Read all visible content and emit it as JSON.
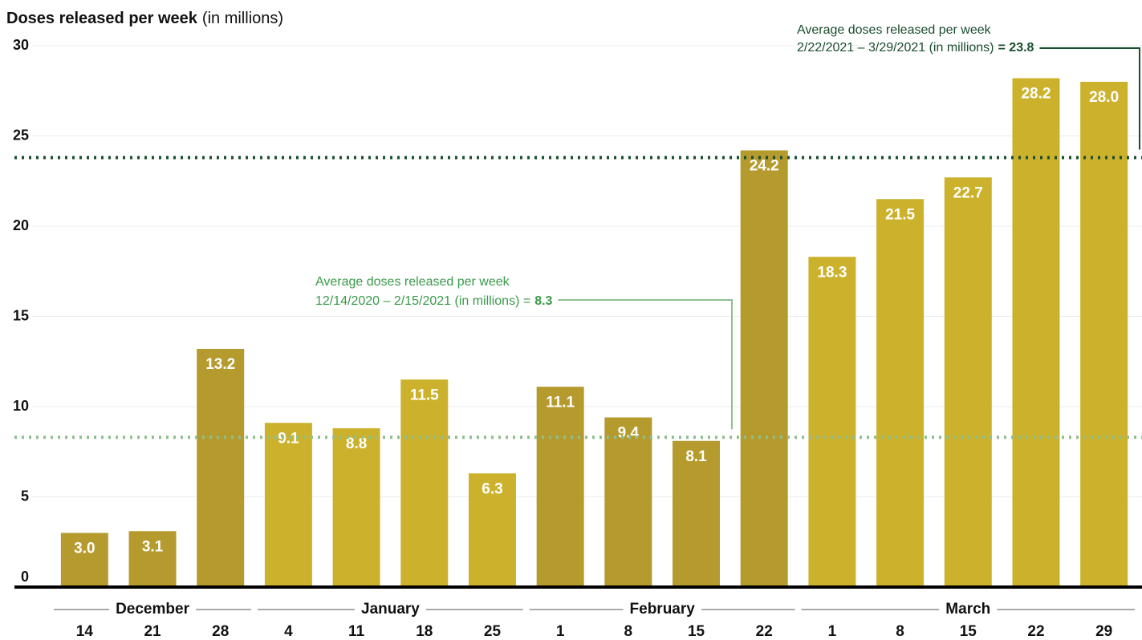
{
  "chart_data": {
    "type": "bar",
    "title": "Doses released per week",
    "subtitle": "(in millions)",
    "categories": [
      "14",
      "21",
      "28",
      "4",
      "11",
      "18",
      "25",
      "1",
      "8",
      "15",
      "22",
      "1",
      "8",
      "15",
      "22",
      "29"
    ],
    "months": [
      "December",
      "January",
      "February",
      "March"
    ],
    "values": [
      3.0,
      3.1,
      13.2,
      9.1,
      8.8,
      11.5,
      6.3,
      11.1,
      9.4,
      8.1,
      24.2,
      18.3,
      21.5,
      22.7,
      28.2,
      28.0
    ],
    "value_labels": [
      "3.0",
      "3.1",
      "13.2",
      "9.1",
      "8.8",
      "11.5",
      "6.3",
      "11.1",
      "9.4",
      "8.1",
      "24.2",
      "18.3",
      "21.5",
      "22.7",
      "28.2",
      "28.0"
    ],
    "colors": [
      "#b59a2e",
      "#b59a2e",
      "#b59a2e",
      "#ccb22c",
      "#ccb22c",
      "#ccb22c",
      "#ccb22c",
      "#b59a2e",
      "#b59a2e",
      "#b59a2e",
      "#b59a2e",
      "#ccb22c",
      "#ccb22c",
      "#ccb22c",
      "#ccb22c",
      "#ccb22c"
    ],
    "ylim": [
      0,
      30
    ],
    "yticks": [
      0,
      5,
      10,
      15,
      20,
      25,
      30
    ],
    "grid": true,
    "annotations": [
      {
        "line1": "Average doses released per week",
        "line2": "12/14/2020 – 2/15/2021 (in millions) =",
        "value": 8.3,
        "color": "#3a9a4a",
        "line_color": "#8fbf8f"
      },
      {
        "line1": "Average doses released per week",
        "line2": "2/22/2021 – 3/29/2021 (in millions)",
        "value_label": "= 23.8",
        "value": 23.8,
        "color": "#1a4d2e",
        "line_color": "#1a4d2e"
      }
    ]
  }
}
